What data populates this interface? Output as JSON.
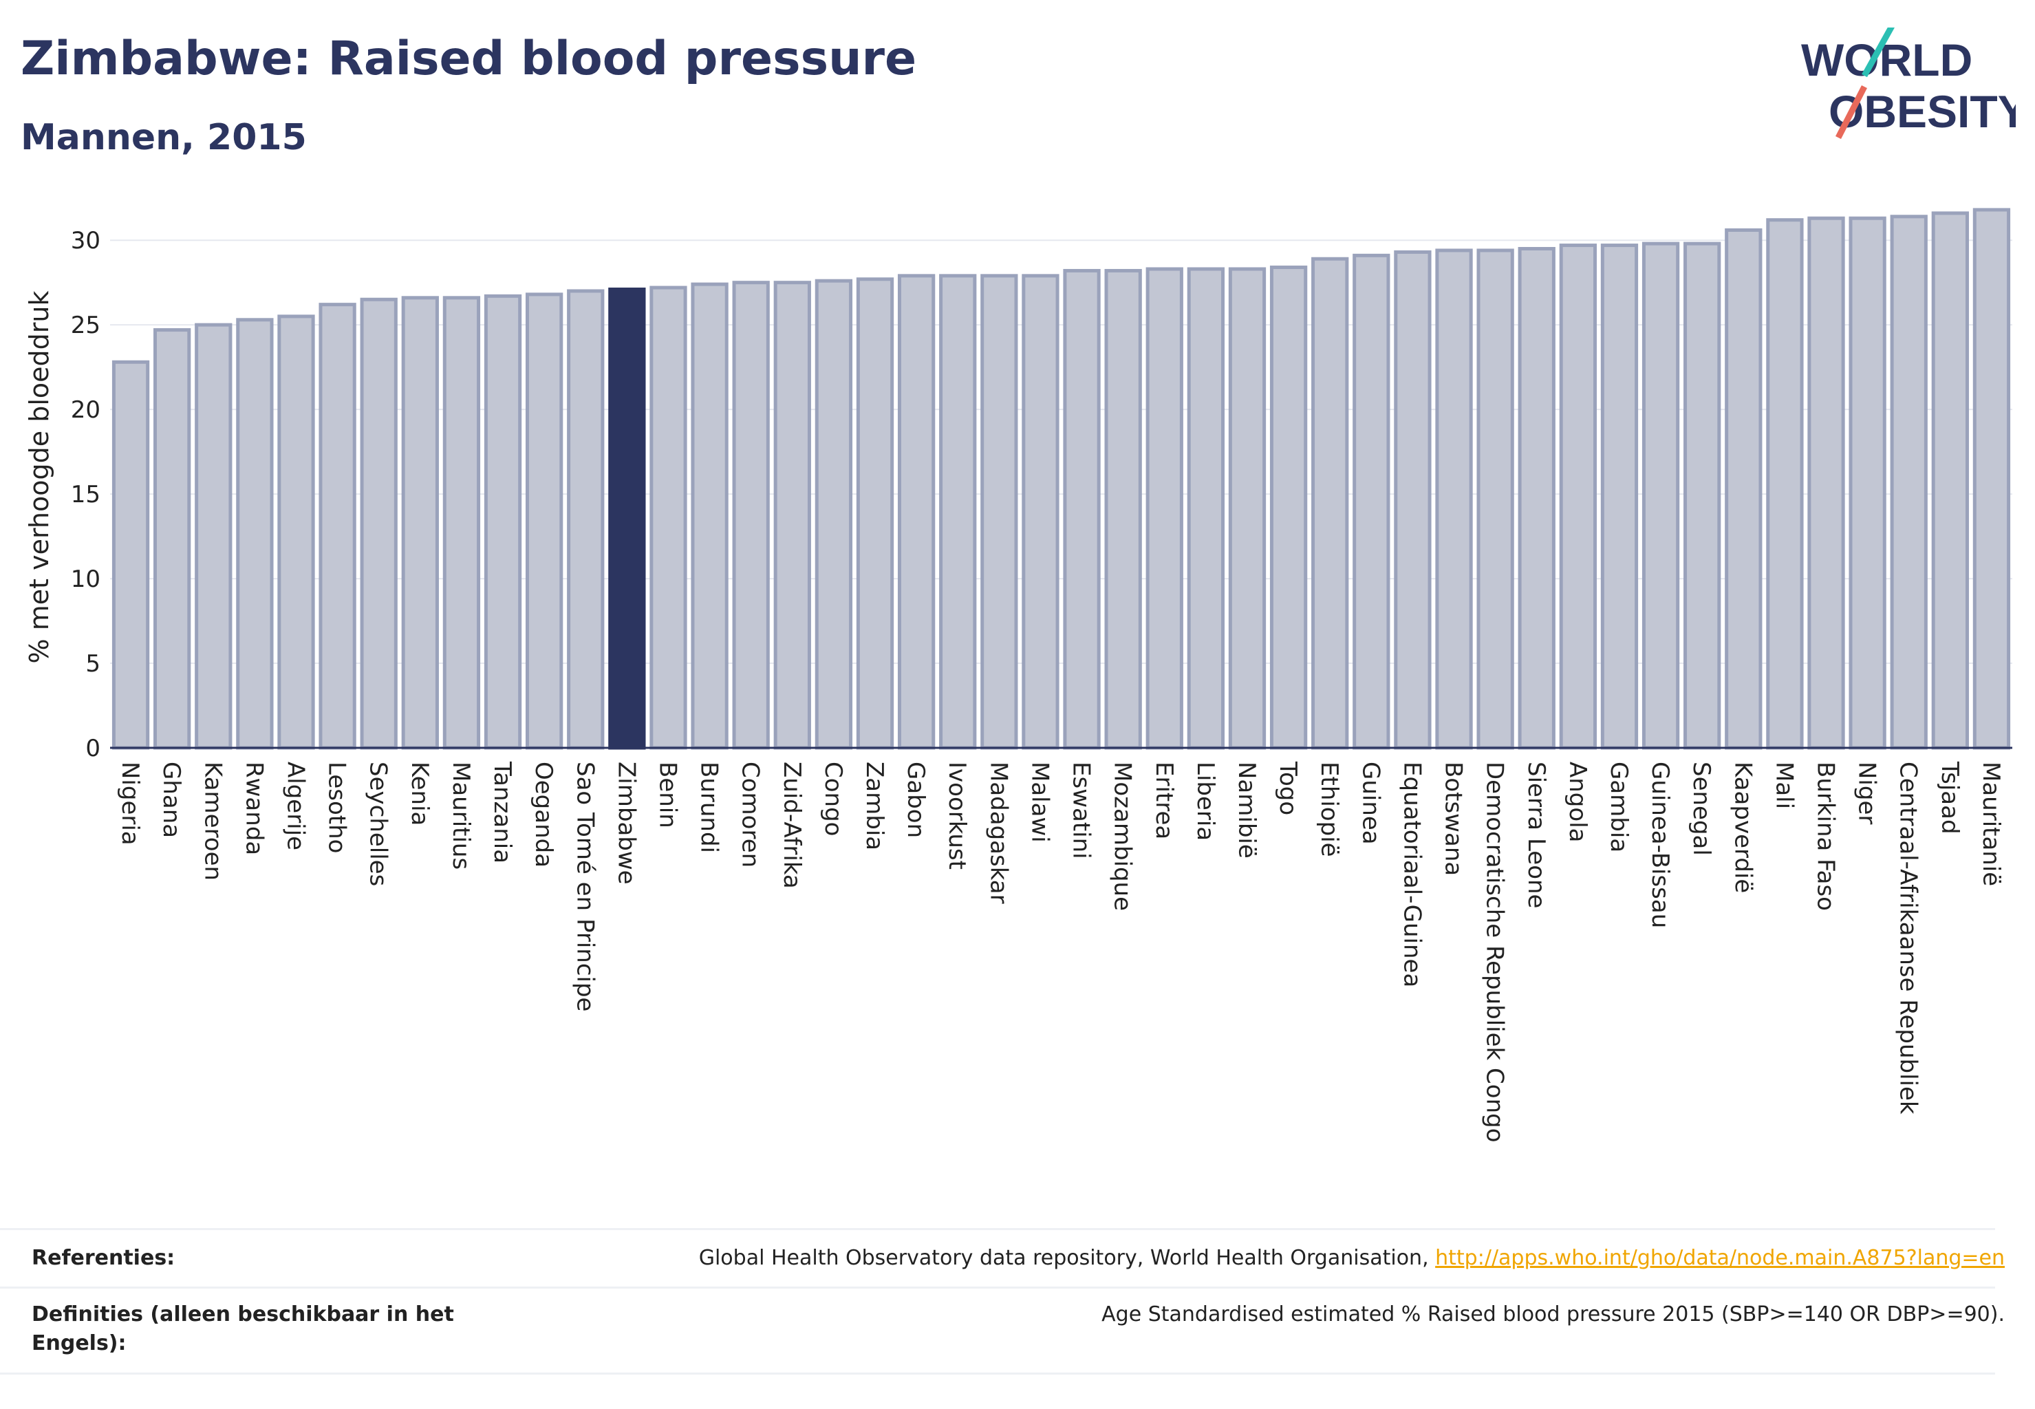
{
  "header": {
    "title": "Zimbabwe: Raised blood pressure",
    "subtitle": "Mannen, 2015",
    "logo_text": [
      "WORLD",
      "OBESITY"
    ]
  },
  "colors": {
    "bar": "#c2c6d3",
    "bar_border": "#9aa2bb",
    "highlight": "#2c3560",
    "title": "#2c3560",
    "grid": "#e6e8ef",
    "link": "#f0a500",
    "logo_teal": "#2bbfb3",
    "logo_coral": "#e8695a"
  },
  "chart_data": {
    "type": "bar",
    "ylabel": "% met verhoogde bloeddruk",
    "ylim": [
      0,
      32
    ],
    "yticks": [
      0,
      5,
      10,
      15,
      20,
      25,
      30
    ],
    "grid": true,
    "highlight": "Zimbabwe",
    "categories": [
      "Nigeria",
      "Ghana",
      "Kameroen",
      "Rwanda",
      "Algerije",
      "Lesotho",
      "Seychelles",
      "Kenia",
      "Mauritius",
      "Tanzania",
      "Oeganda",
      "Sao Tomé en Principe",
      "Zimbabwe",
      "Benin",
      "Burundi",
      "Comoren",
      "Zuid-Afrika",
      "Congo",
      "Zambia",
      "Gabon",
      "Ivoorkust",
      "Madagaskar",
      "Malawi",
      "Eswatini",
      "Mozambique",
      "Eritrea",
      "Liberia",
      "Namibië",
      "Togo",
      "Ethiopië",
      "Guinea",
      "Equatoriaal-Guinea",
      "Botswana",
      "Democratische Republiek Congo",
      "Sierra Leone",
      "Angola",
      "Gambia",
      "Guinea-Bissau",
      "Senegal",
      "Kaapverdië",
      "Mali",
      "Burkina Faso",
      "Niger",
      "Centraal-Afrikaanse Republiek",
      "Tsjaad",
      "Mauritanië"
    ],
    "values": [
      22.8,
      24.7,
      25.0,
      25.3,
      25.5,
      26.2,
      26.5,
      26.6,
      26.6,
      26.7,
      26.8,
      27.0,
      27.1,
      27.2,
      27.4,
      27.5,
      27.5,
      27.6,
      27.7,
      27.9,
      27.9,
      27.9,
      27.9,
      28.2,
      28.2,
      28.3,
      28.3,
      28.3,
      28.4,
      28.9,
      29.1,
      29.3,
      29.4,
      29.4,
      29.5,
      29.7,
      29.7,
      29.8,
      29.8,
      30.6,
      31.2,
      31.3,
      31.3,
      31.4,
      31.6,
      31.8
    ]
  },
  "footer": {
    "references_label": "Referenties:",
    "references_text": "Global Health Observatory data repository, World Health Organisation, ",
    "references_link": "http://apps.who.int/gho/data/node.main.A875?lang=en",
    "definitions_label": "Definities (alleen beschikbaar in het Engels):",
    "definitions_text": "Age Standardised estimated % Raised blood pressure 2015 (SBP>=140 OR DBP>=90)."
  }
}
